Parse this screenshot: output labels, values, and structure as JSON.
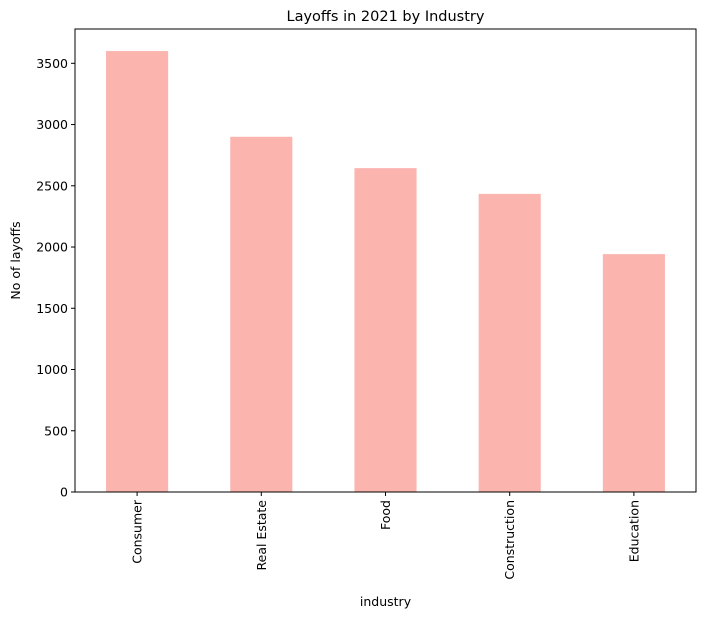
{
  "chart_data": {
    "type": "bar",
    "title": "Layoffs in 2021 by Industry",
    "xlabel": "industry",
    "ylabel": "No of layoffs",
    "categories": [
      "Consumer",
      "Real Estate",
      "Food",
      "Construction",
      "Education"
    ],
    "values": [
      3600,
      2900,
      2644,
      2434,
      1942
    ],
    "ylim": [
      0,
      3780
    ],
    "yticks": [
      0,
      500,
      1000,
      1500,
      2000,
      2500,
      3000,
      3500
    ],
    "ytick_labels": [
      "0",
      "500",
      "1000",
      "1500",
      "2000",
      "2500",
      "3000",
      "3500"
    ],
    "grid": false,
    "legend": "none",
    "bar_color": "#fbb4ae",
    "axis_color": "#000000"
  }
}
